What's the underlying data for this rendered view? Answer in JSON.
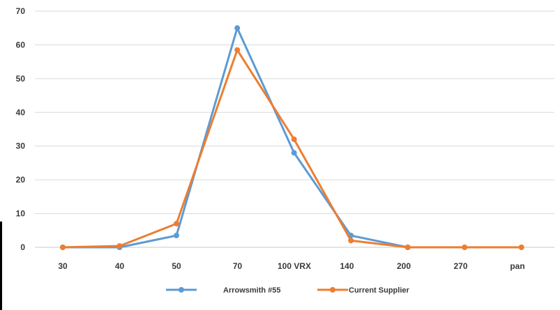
{
  "chart_data": {
    "type": "line",
    "title": "",
    "xlabel": "",
    "ylabel": "",
    "categories": [
      "30",
      "40",
      "50",
      "70",
      "100 VRX",
      "140",
      "200",
      "270",
      "pan"
    ],
    "y_ticks": [
      0,
      10,
      20,
      30,
      40,
      50,
      60,
      70
    ],
    "ylim": [
      0,
      70
    ],
    "grid": true,
    "legend_position": "bottom",
    "series": [
      {
        "name": "Arrowsmith #55",
        "color": "#5b9bd5",
        "points": [
          [
            0.0,
            0
          ],
          [
            1.0,
            0
          ],
          [
            2.0,
            3.5
          ],
          [
            3.0,
            65
          ],
          [
            4.0,
            28
          ],
          [
            5.0,
            3.5
          ],
          [
            6.0,
            0
          ]
        ]
      },
      {
        "name": "Current Supplier",
        "color": "#ed7d31",
        "points": [
          [
            0.0,
            0
          ],
          [
            1.0,
            0.4
          ],
          [
            2.0,
            7
          ],
          [
            3.0,
            58.5
          ],
          [
            4.0,
            32
          ],
          [
            5.0,
            2
          ],
          [
            6.0,
            0
          ],
          [
            7.0,
            0
          ],
          [
            8.0,
            0
          ]
        ]
      }
    ]
  }
}
